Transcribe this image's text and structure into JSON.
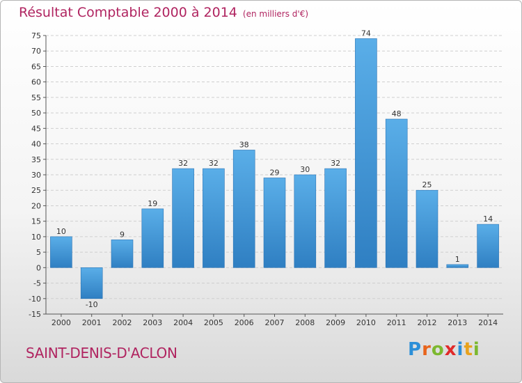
{
  "title": "Résultat Comptable 2000 à 2014",
  "subtitle": "(en milliers d'€)",
  "city": "SAINT-DENIS-D'ACLON",
  "logo": "Proxiti",
  "colors": {
    "bar": "#3d94d6",
    "title": "#b02460"
  },
  "chart_data": {
    "type": "bar",
    "title": "Résultat Comptable 2000 à 2014",
    "subtitle": "(en milliers d'€)",
    "categories": [
      "2000",
      "2001",
      "2002",
      "2003",
      "2004",
      "2005",
      "2006",
      "2007",
      "2008",
      "2009",
      "2010",
      "2011",
      "2012",
      "2013",
      "2014"
    ],
    "values": [
      10,
      -10,
      9,
      19,
      32,
      32,
      38,
      29,
      30,
      32,
      74,
      48,
      25,
      1,
      14
    ],
    "ylim": [
      -15,
      75
    ],
    "yticks": [
      -15,
      -10,
      -5,
      0,
      5,
      10,
      15,
      20,
      25,
      30,
      35,
      40,
      45,
      50,
      55,
      60,
      65,
      70,
      75
    ],
    "grid": true
  }
}
